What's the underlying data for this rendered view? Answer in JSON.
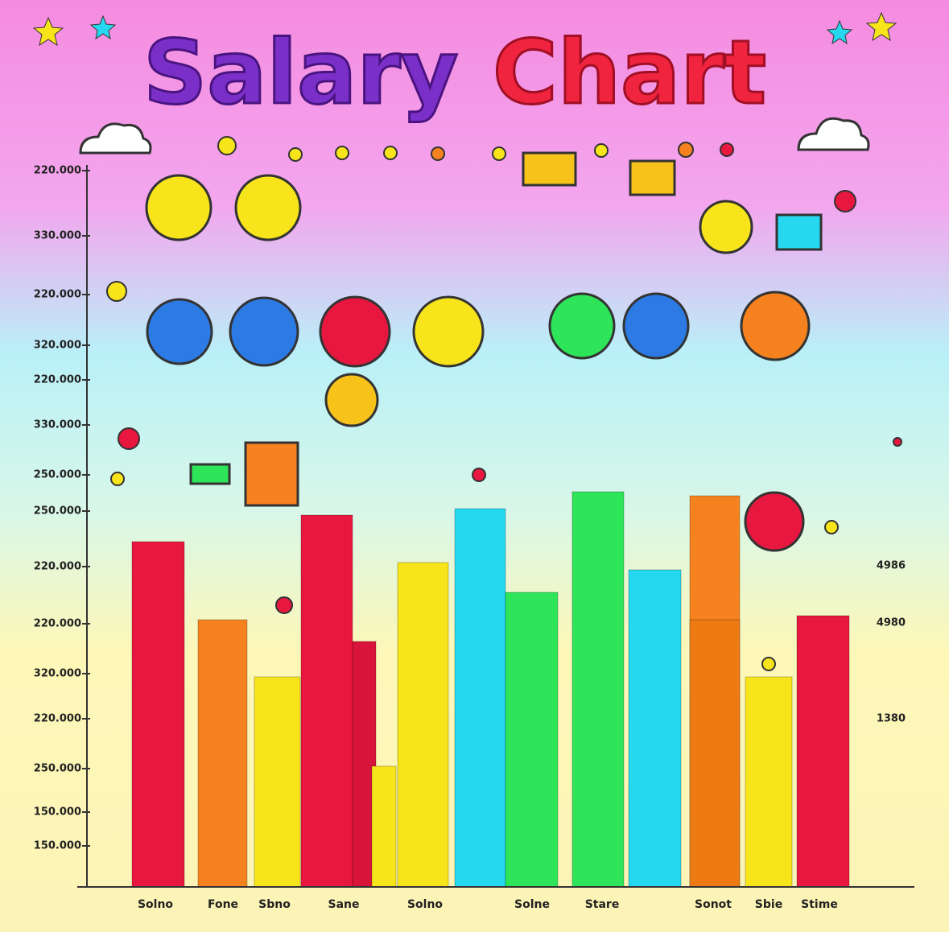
{
  "title": {
    "first": "Salary",
    "second": "Chart"
  },
  "y_axis_labels": [
    "220.000",
    "330.000",
    "220.000",
    "320.000",
    "220.000",
    "330.000",
    "250.000",
    "250.000",
    "220.000",
    "220.000",
    "320.000",
    "220.000",
    "250.000",
    "150.000",
    "150.000"
  ],
  "right_labels": [
    "4986",
    "4980",
    "1380"
  ],
  "x_labels": [
    "Solno",
    "Fone",
    "Sbno",
    "Sane",
    "Solno",
    "Solne",
    "Stare",
    "Sonot",
    "Sbie",
    "Stime"
  ]
}
